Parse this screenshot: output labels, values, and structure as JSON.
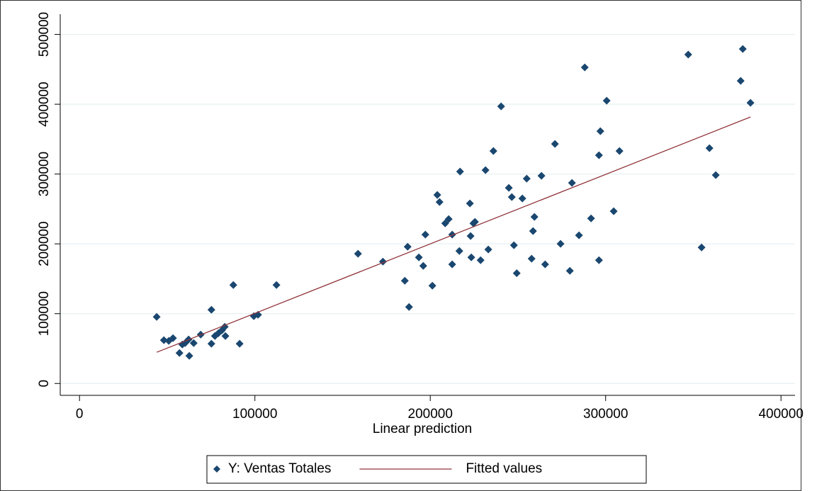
{
  "chart_data": {
    "type": "scatter",
    "x_label": "Linear prediction",
    "xlim": [
      -11000,
      408000
    ],
    "ylim": [
      -17000,
      529000
    ],
    "xticks": [
      0,
      100000,
      200000,
      300000,
      400000
    ],
    "yticks": [
      0,
      100000,
      200000,
      300000,
      400000,
      500000
    ],
    "grid": true,
    "legend": "bottom",
    "series": [
      {
        "name": "Y: Ventas Totales",
        "kind": "scatter",
        "color": "#1a476f",
        "x": [
          44000,
          48100,
          50900,
          53300,
          57000,
          58600,
          60200,
          62200,
          62600,
          65100,
          69100,
          75200,
          75200,
          77200,
          79200,
          81200,
          82800,
          83200,
          87700,
          91300,
          99400,
          101800,
          112300,
          158800,
          173000,
          185500,
          187100,
          187900,
          193500,
          196000,
          197200,
          201200,
          204000,
          205300,
          208500,
          210500,
          212500,
          212500,
          216600,
          217000,
          222600,
          223000,
          223400,
          224600,
          225500,
          228700,
          231500,
          233100,
          236000,
          240400,
          244800,
          246500,
          247700,
          249300,
          252500,
          255000,
          257800,
          258600,
          259400,
          263400,
          265500,
          271100,
          274300,
          279600,
          280800,
          284800,
          288100,
          291700,
          296200,
          296200,
          297000,
          300600,
          304600,
          307900,
          347100,
          354700,
          359200,
          362800,
          377000,
          378200,
          382600
        ],
        "values": [
          95400,
          62000,
          61000,
          65000,
          43700,
          55800,
          57900,
          63000,
          39600,
          57900,
          70000,
          105600,
          56900,
          68000,
          72100,
          76100,
          81200,
          68000,
          141100,
          56900,
          96400,
          98500,
          141100,
          185800,
          174600,
          147200,
          195900,
          109600,
          180700,
          168500,
          213200,
          140100,
          270100,
          259900,
          229400,
          235500,
          170600,
          213200,
          189800,
          303600,
          257900,
          211200,
          180700,
          229400,
          231500,
          176600,
          305600,
          191900,
          333000,
          397000,
          280200,
          267000,
          198000,
          158000,
          265000,
          293400,
          178700,
          218300,
          238600,
          297500,
          170600,
          343100,
          200000,
          161400,
          287300,
          212200,
          452800,
          236500,
          176600,
          326900,
          361400,
          405100,
          246700,
          333000,
          471100,
          194900,
          337100,
          298500,
          433500,
          479200,
          402000
        ]
      },
      {
        "name": "Fitted values",
        "kind": "line",
        "color": "#90353b",
        "x": [
          44000,
          382600
        ],
        "values": [
          44700,
          381700
        ]
      }
    ]
  }
}
